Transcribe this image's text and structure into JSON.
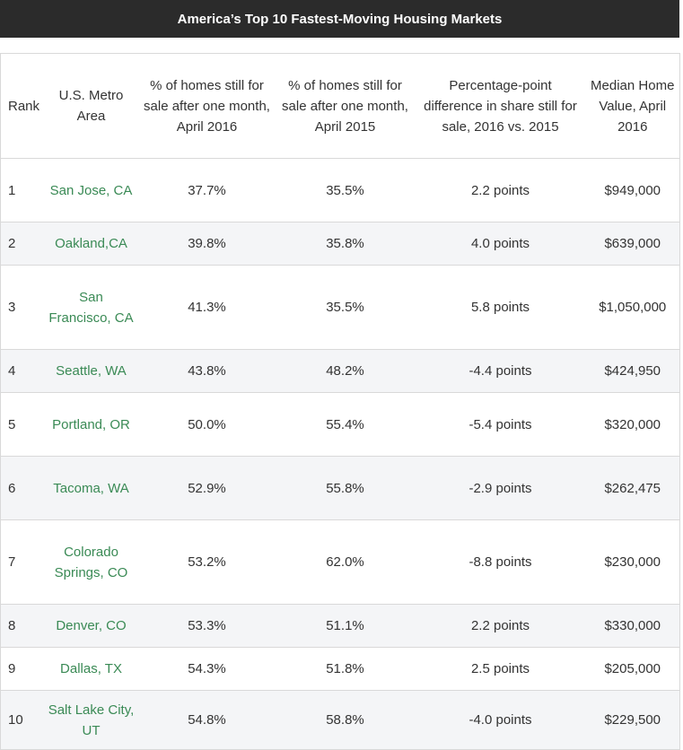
{
  "title": "America’s Top 10 Fastest-Moving Housing Markets",
  "headers": {
    "rank": "Rank",
    "metro": "U.S. Metro Area",
    "pct_2016": "% of homes still for sale after one month, April 2016",
    "pct_2015": "% of homes still for sale after one month, April 2015",
    "diff": "Percentage-point difference in share still for sale, 2016 vs. 2015",
    "value": "Median Home Value, April 2016"
  },
  "rows": [
    {
      "rank": "1",
      "metro": "San Jose, CA",
      "pct_2016": "37.7%",
      "pct_2015": "35.5%",
      "diff": "2.2 points",
      "value": "$949,000"
    },
    {
      "rank": "2",
      "metro": "Oakland,CA",
      "pct_2016": "39.8%",
      "pct_2015": "35.8%",
      "diff": "4.0 points",
      "value": "$639,000"
    },
    {
      "rank": "3",
      "metro": "San Francisco, CA",
      "pct_2016": "41.3%",
      "pct_2015": "35.5%",
      "diff": "5.8 points",
      "value": "$1,050,000"
    },
    {
      "rank": "4",
      "metro": "Seattle, WA",
      "pct_2016": "43.8%",
      "pct_2015": "48.2%",
      "diff": "-4.4 points",
      "value": "$424,950"
    },
    {
      "rank": "5",
      "metro": "Portland, OR",
      "pct_2016": "50.0%",
      "pct_2015": "55.4%",
      "diff": "-5.4 points",
      "value": "$320,000"
    },
    {
      "rank": "6",
      "metro": "Tacoma, WA",
      "pct_2016": "52.9%",
      "pct_2015": "55.8%",
      "diff": "-2.9 points",
      "value": "$262,475"
    },
    {
      "rank": "7",
      "metro": "Colorado Springs, CO",
      "pct_2016": "53.2%",
      "pct_2015": "62.0%",
      "diff": "-8.8 points",
      "value": "$230,000"
    },
    {
      "rank": "8",
      "metro": "Denver, CO",
      "pct_2016": "53.3%",
      "pct_2015": "51.1%",
      "diff": "2.2 points",
      "value": "$330,000"
    },
    {
      "rank": "9",
      "metro": "Dallas, TX",
      "pct_2016": "54.3%",
      "pct_2015": "51.8%",
      "diff": "2.5 points",
      "value": "$205,000"
    },
    {
      "rank": "10",
      "metro": "Salt Lake City, UT",
      "pct_2016": "54.8%",
      "pct_2015": "58.8%",
      "diff": "-4.0 points",
      "value": "$229,500"
    }
  ],
  "colors": {
    "title_bar": "#2b2b2b",
    "metro_link": "#3a8a55",
    "row_stripe": "#f4f5f7",
    "border": "#d9d9d9"
  }
}
